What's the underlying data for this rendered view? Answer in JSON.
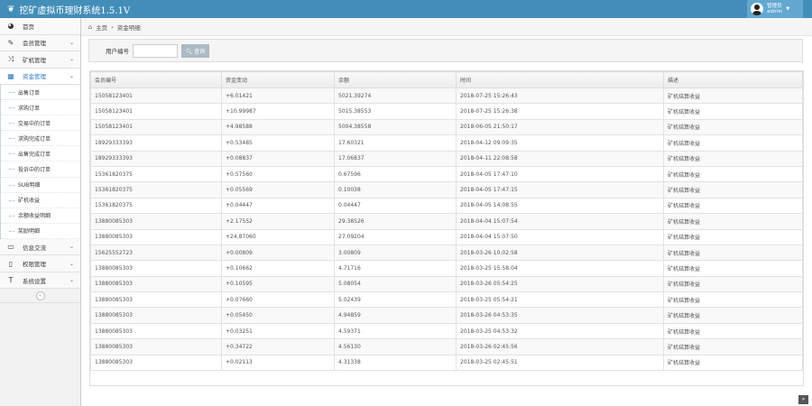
{
  "header": {
    "title": "挖矿虚拟币理财系统1.5.1V",
    "user_name": "管理员",
    "user_role": "admin"
  },
  "sidebar": {
    "items": [
      {
        "label": "首页",
        "icon": "tachometer-icon"
      },
      {
        "label": "会员管理",
        "icon": "edit-icon"
      },
      {
        "label": "矿机管理",
        "icon": "random-icon"
      },
      {
        "label": "资金管理",
        "icon": "calendar-icon",
        "active": true,
        "children": [
          "出售订单",
          "求购订单",
          "交易中的订单",
          "求购完成订单",
          "出售完成订单",
          "投诉中的订单",
          "SUB明细",
          "矿机收益",
          "余额收益明细",
          "奖励明细"
        ]
      },
      {
        "label": "信息交流",
        "icon": "list-alt-icon"
      },
      {
        "label": "权限管理",
        "icon": "file-icon"
      },
      {
        "label": "系统设置",
        "icon": "text-icon"
      }
    ]
  },
  "breadcrumb": {
    "home": "主页",
    "current": "资金明细"
  },
  "search": {
    "label": "用户编号",
    "value": "",
    "button": "查询"
  },
  "table": {
    "headers": [
      "会员编号",
      "资金变动",
      "余额",
      "时间",
      "描述"
    ],
    "rows": [
      [
        "15058123401",
        "+6.01421",
        "5021.39274",
        "2018-07-25 15:26:43",
        "矿机结算收益"
      ],
      [
        "15058123401",
        "+10.99987",
        "5015.38553",
        "2018-07-25 15:26:38",
        "矿机结算收益"
      ],
      [
        "15058123401",
        "+4.98588",
        "5004.38558",
        "2018-06-05 21:50:17",
        "矿机结算收益"
      ],
      [
        "18929333393",
        "+0.53485",
        "17.60321",
        "2018-04-12 09:09:35",
        "矿机结算收益"
      ],
      [
        "18929333393",
        "+0.08837",
        "17.06837",
        "2018-04-11 22:08:58",
        "矿机结算收益"
      ],
      [
        "15361820375",
        "+0.57560",
        "0.67596",
        "2018-04-05 17:47:10",
        "矿机结算收益"
      ],
      [
        "15361820375",
        "+0.05569",
        "0.10038",
        "2018-04-05 17:47:15",
        "矿机结算收益"
      ],
      [
        "15361820375",
        "+0.04447",
        "0.04447",
        "2018-04-05 14:08:55",
        "矿机结算收益"
      ],
      [
        "13880085303",
        "+2.17552",
        "29.38526",
        "2018-04-04 15:07:54",
        "矿机结算收益"
      ],
      [
        "13880085303",
        "+24.87060",
        "27.09204",
        "2018-04-04 15:07:50",
        "矿机结算收益"
      ],
      [
        "15625552723",
        "+0.00809",
        "3.00809",
        "2018-03-26 10:02:58",
        "矿机结算收益"
      ],
      [
        "13880085303",
        "+0.10662",
        "4.71716",
        "2018-03-25 15:58:04",
        "矿机结算收益"
      ],
      [
        "13880085303",
        "+0.10595",
        "5.08054",
        "2018-03-26 05:54:25",
        "矿机结算收益"
      ],
      [
        "13880085303",
        "+0.07660",
        "5.02439",
        "2018-03-25 05:54:21",
        "矿机结算收益"
      ],
      [
        "13880085303",
        "+0.05450",
        "4.94859",
        "2018-03-26 04:53:35",
        "矿机结算收益"
      ],
      [
        "13880085303",
        "+0.03251",
        "4.59371",
        "2018-03-25 04:53:32",
        "矿机结算收益"
      ],
      [
        "13880085303",
        "+0.34722",
        "4.56130",
        "2018-03-26 02:45:56",
        "矿机结算收益"
      ],
      [
        "13880085303",
        "+0.02113",
        "4.31338",
        "2018-03-25 02:45:51",
        "矿机结算收益"
      ]
    ]
  },
  "colors": {
    "header": "#438eb9",
    "active": "#2b7dbc"
  }
}
